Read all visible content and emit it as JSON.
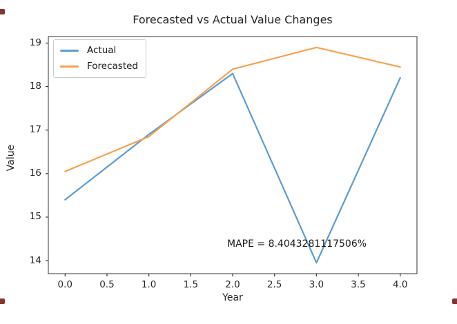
{
  "figure": {
    "background": "#ffffff",
    "spine_color": "#333333",
    "text_color": "#262626"
  },
  "chart_data": {
    "type": "line",
    "title": "Forecasted vs Actual Value Changes",
    "xlabel": "Year",
    "ylabel": "Value",
    "x": [
      0,
      1,
      2,
      3,
      4
    ],
    "series": [
      {
        "name": "Actual",
        "color": "#5b9bd1",
        "values": [
          15.4,
          16.9,
          18.3,
          13.95,
          18.2
        ]
      },
      {
        "name": "Forecasted",
        "color": "#f9a14d",
        "values": [
          16.05,
          16.85,
          18.4,
          18.9,
          18.45
        ]
      }
    ],
    "xlim": [
      -0.2,
      4.2
    ],
    "ylim": [
      13.7,
      19.15
    ],
    "xticks": [
      0.0,
      0.5,
      1.0,
      1.5,
      2.0,
      2.5,
      3.0,
      3.5,
      4.0
    ],
    "xtick_labels": [
      "0.0",
      "0.5",
      "1.0",
      "1.5",
      "2.0",
      "2.5",
      "3.0",
      "3.5",
      "4.0"
    ],
    "yticks": [
      14,
      15,
      16,
      17,
      18,
      19
    ],
    "ytick_labels": [
      "14",
      "15",
      "16",
      "17",
      "18",
      "19"
    ],
    "grid": false,
    "legend": {
      "position": "upper left",
      "entries": [
        "Actual",
        "Forecasted"
      ]
    },
    "annotation": {
      "text": "MAPE = 8.4043281117506%",
      "x": 1.93,
      "y": 14.28
    }
  }
}
